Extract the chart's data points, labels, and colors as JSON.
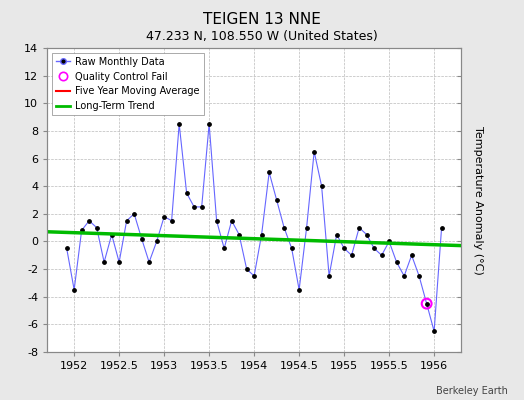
{
  "title": "TEIGEN 13 NNE",
  "subtitle": "47.233 N, 108.550 W (United States)",
  "ylabel": "Temperature Anomaly (°C)",
  "watermark": "Berkeley Earth",
  "xlim": [
    1951.7,
    1956.3
  ],
  "ylim": [
    -8,
    14
  ],
  "yticks": [
    -8,
    -6,
    -4,
    -2,
    0,
    2,
    4,
    6,
    8,
    10,
    12,
    14
  ],
  "xticks": [
    1952,
    1952.5,
    1953,
    1953.5,
    1954,
    1954.5,
    1955,
    1955.5,
    1956
  ],
  "xtick_labels": [
    "1952",
    "1952.5",
    "1953",
    "1953.5",
    "1954",
    "1954.5",
    "1955",
    "1955.5",
    "1956"
  ],
  "raw_x": [
    1951.917,
    1952.0,
    1952.083,
    1952.167,
    1952.25,
    1952.333,
    1952.417,
    1952.5,
    1952.583,
    1952.667,
    1952.75,
    1952.833,
    1952.917,
    1953.0,
    1953.083,
    1953.167,
    1953.25,
    1953.333,
    1953.417,
    1953.5,
    1953.583,
    1953.667,
    1953.75,
    1953.833,
    1953.917,
    1954.0,
    1954.083,
    1954.167,
    1954.25,
    1954.333,
    1954.417,
    1954.5,
    1954.583,
    1954.667,
    1954.75,
    1954.833,
    1954.917,
    1955.0,
    1955.083,
    1955.167,
    1955.25,
    1955.333,
    1955.417,
    1955.5,
    1955.583,
    1955.667,
    1955.75,
    1955.833,
    1955.917,
    1956.0,
    1956.083
  ],
  "raw_y": [
    -0.5,
    -3.5,
    0.8,
    1.5,
    1.0,
    -1.5,
    0.5,
    -1.5,
    1.5,
    2.0,
    0.2,
    -1.5,
    0.0,
    1.8,
    1.5,
    8.5,
    3.5,
    2.5,
    2.5,
    8.5,
    1.5,
    -0.5,
    1.5,
    0.5,
    -2.0,
    -2.5,
    0.5,
    5.0,
    3.0,
    1.0,
    -0.5,
    -3.5,
    1.0,
    6.5,
    4.0,
    -2.5,
    0.5,
    -0.5,
    -1.0,
    1.0,
    0.5,
    -0.5,
    -1.0,
    0.0,
    -1.5,
    -2.5,
    -1.0,
    -2.5,
    -4.5,
    -6.5,
    1.0
  ],
  "moving_avg_x": [],
  "moving_avg_y": [],
  "trend_x": [
    1951.7,
    1956.3
  ],
  "trend_y": [
    0.7,
    -0.3
  ],
  "qc_fail_x": [
    1955.917
  ],
  "qc_fail_y": [
    -4.5
  ],
  "bg_color": "#e8e8e8",
  "plot_bg_color": "#ffffff",
  "raw_line_color": "#6666ff",
  "raw_marker_color": "#000000",
  "moving_avg_color": "#ff0000",
  "trend_color": "#00bb00",
  "qc_color": "#ff00ff",
  "grid_color": "#bbbbbb",
  "title_fontsize": 11,
  "subtitle_fontsize": 9,
  "ylabel_fontsize": 8,
  "tick_fontsize": 8
}
